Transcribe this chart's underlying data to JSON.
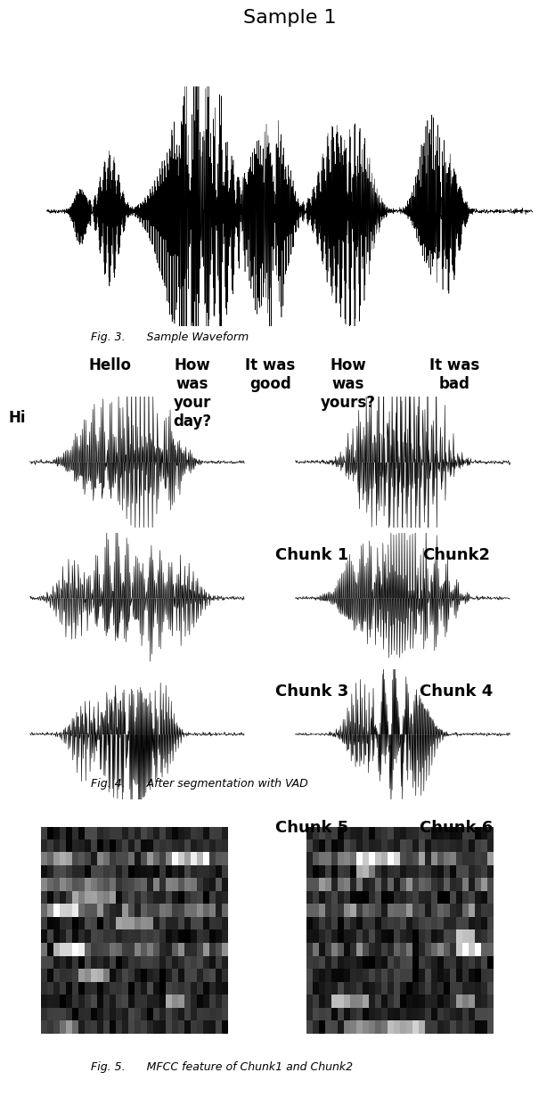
{
  "title_fig3": "Sample 1",
  "caption_fig3": "Fig. 3.      Sample Waveform",
  "caption_fig4": "Fig. 4.      After segmentation with VAD",
  "caption_fig5": "Fig. 5.      MFCC feature of Chunk1 and Chunk2",
  "chunk_labels": [
    "Chunk 1",
    "Chunk2",
    "Chunk 3",
    "Chunk 4",
    "Chunk 5",
    "Chunk 6"
  ],
  "word_labels": [
    "Hi",
    "Hello",
    "How\nwas\nyour\nday?",
    "It was\ngood",
    "How\nwas\nyours?",
    "It was\nbad"
  ],
  "bg_color": "#ffffff",
  "wave_color": "#000000",
  "seed": 42
}
